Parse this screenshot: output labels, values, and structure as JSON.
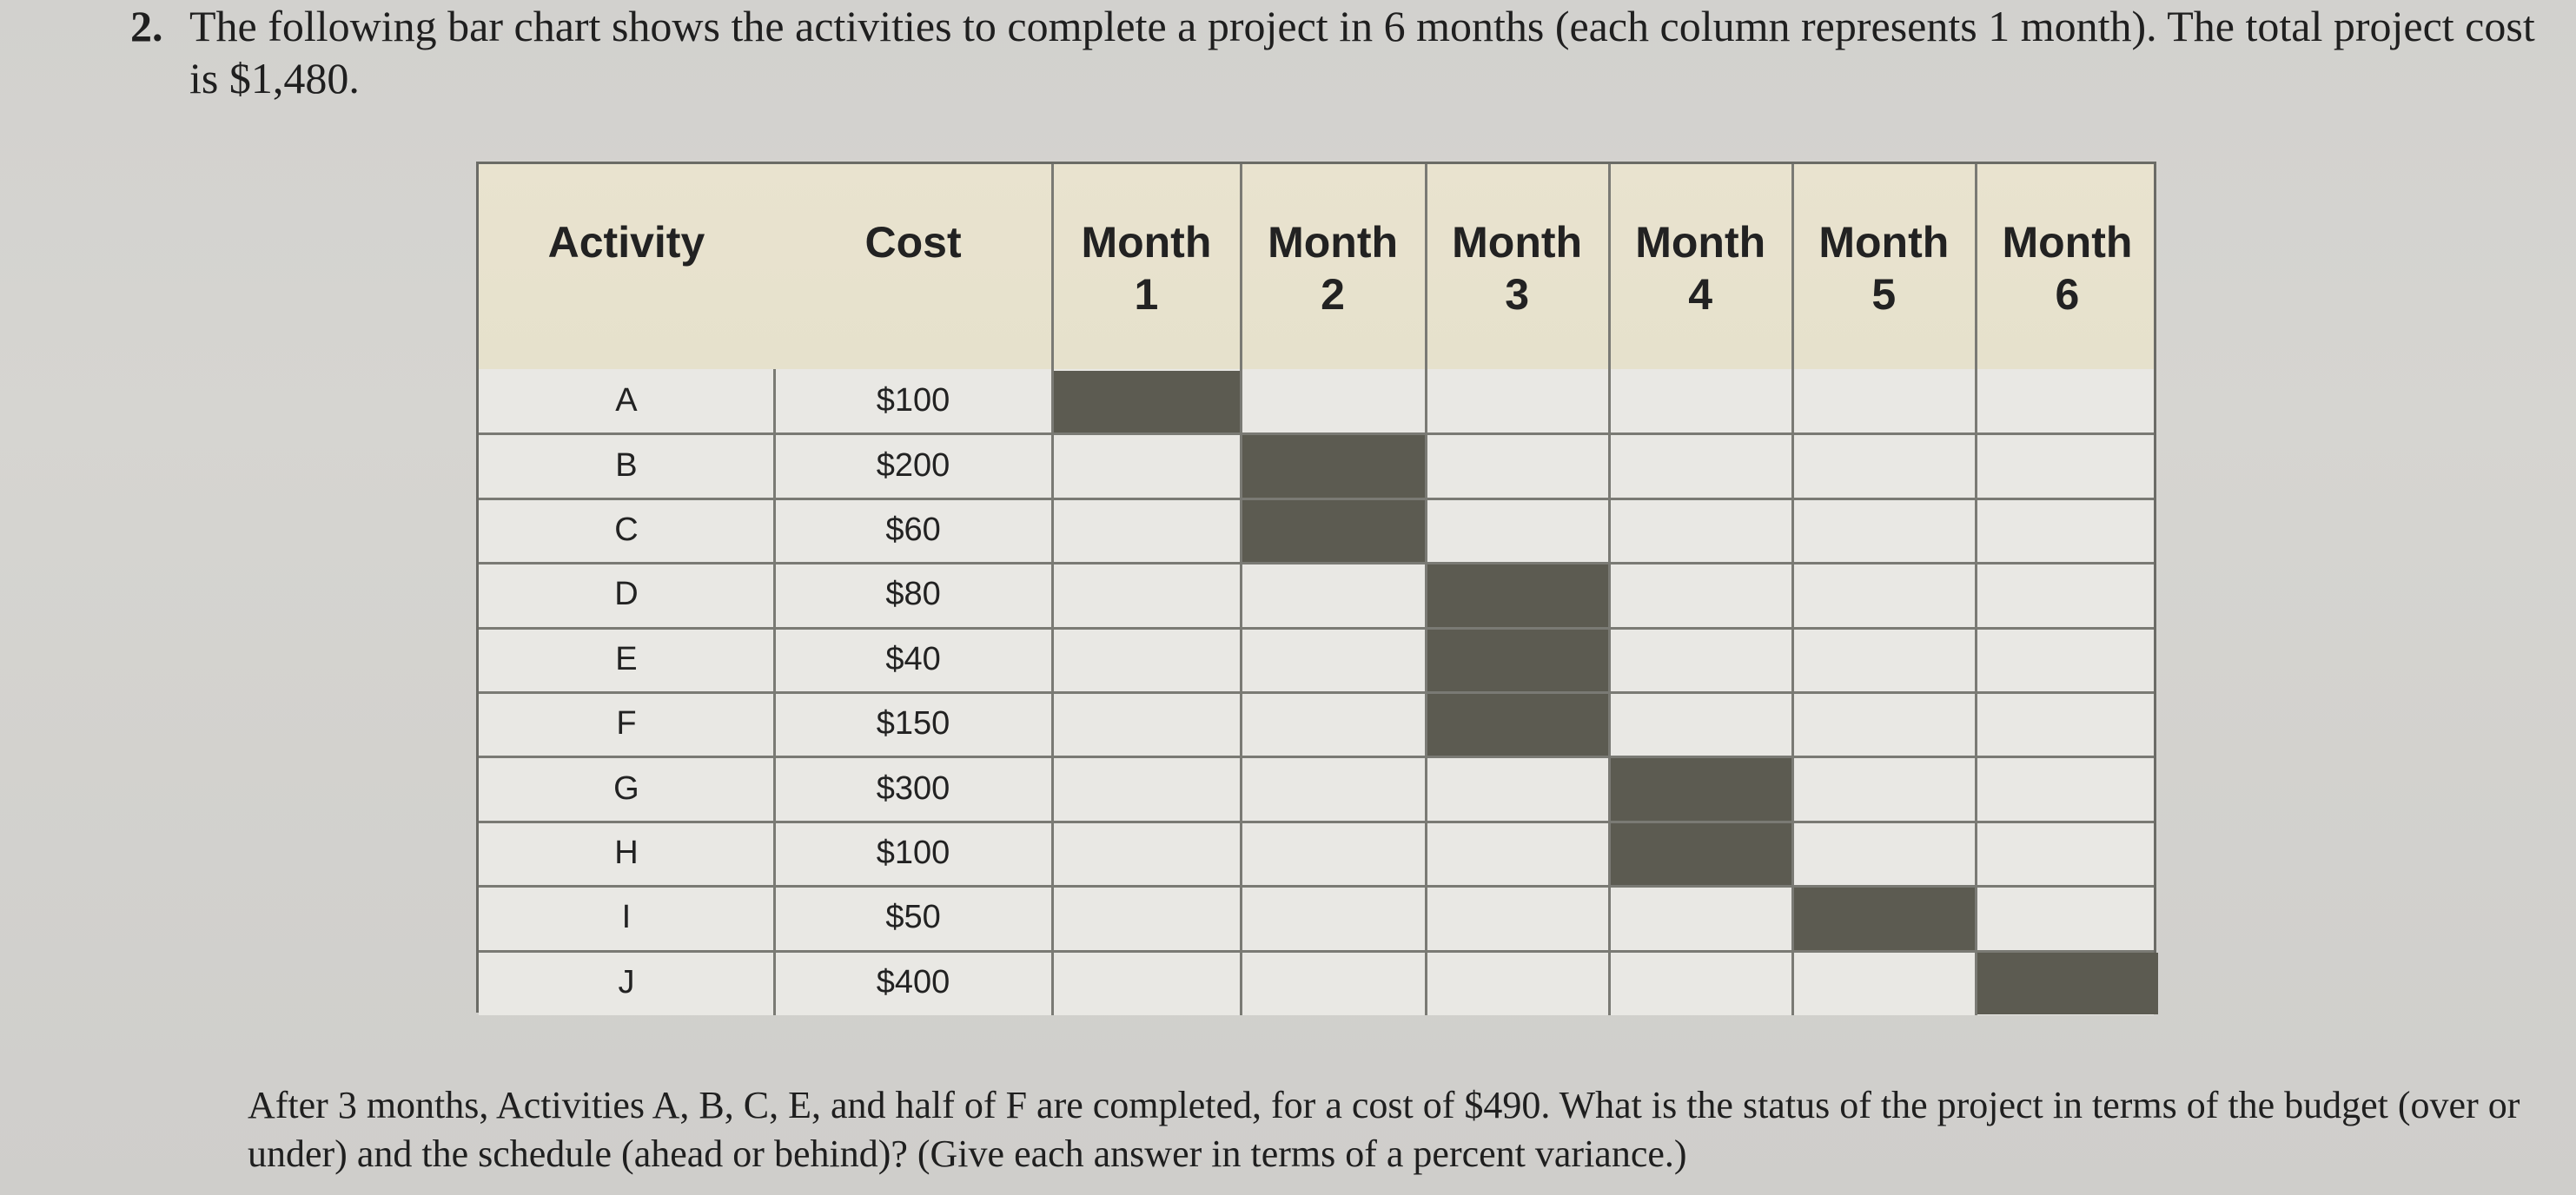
{
  "question": {
    "number": "2.",
    "text": "The following bar chart shows the activities to complete a project in 6 months (each column represents 1 month). The total project cost is $1,480."
  },
  "chart_data": {
    "type": "table",
    "headers": {
      "activity": "Activity",
      "cost": "Cost",
      "months": [
        {
          "line1": "Month",
          "line2": "1"
        },
        {
          "line1": "Month",
          "line2": "2"
        },
        {
          "line1": "Month",
          "line2": "3"
        },
        {
          "line1": "Month",
          "line2": "4"
        },
        {
          "line1": "Month",
          "line2": "5"
        },
        {
          "line1": "Month",
          "line2": "6"
        }
      ]
    },
    "rows": [
      {
        "activity": "A",
        "cost": "$100",
        "month": 1
      },
      {
        "activity": "B",
        "cost": "$200",
        "month": 2
      },
      {
        "activity": "C",
        "cost": "$60",
        "month": 2
      },
      {
        "activity": "D",
        "cost": "$80",
        "month": 3
      },
      {
        "activity": "E",
        "cost": "$40",
        "month": 3
      },
      {
        "activity": "F",
        "cost": "$150",
        "month": 3
      },
      {
        "activity": "G",
        "cost": "$300",
        "month": 4
      },
      {
        "activity": "H",
        "cost": "$100",
        "month": 4
      },
      {
        "activity": "I",
        "cost": "$50",
        "month": 5
      },
      {
        "activity": "J",
        "cost": "$400",
        "month": 6
      }
    ],
    "bar_color": "#5c5b51"
  },
  "footer": {
    "text": "After 3 months, Activities A, B, C, E, and half of F are completed, for a cost of $490. What is the status of the project in terms of the budget (over or under) and the schedule (ahead or behind)? (Give each answer in terms of a percent variance.)"
  }
}
